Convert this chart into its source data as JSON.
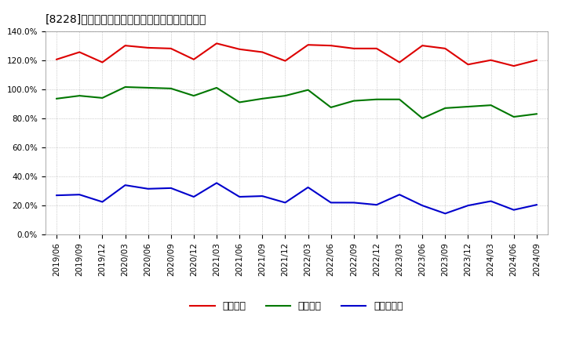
{
  "title": "[8228]　流動比率、当座比率、現預金比率の推移",
  "x_labels": [
    "2019/06",
    "2019/09",
    "2019/12",
    "2020/03",
    "2020/06",
    "2020/09",
    "2020/12",
    "2021/03",
    "2021/06",
    "2021/09",
    "2021/12",
    "2022/03",
    "2022/06",
    "2022/09",
    "2022/12",
    "2023/03",
    "2023/06",
    "2023/09",
    "2023/12",
    "2024/03",
    "2024/06",
    "2024/09"
  ],
  "ryudo": [
    120.5,
    125.5,
    118.5,
    130.0,
    128.5,
    128.0,
    120.5,
    131.5,
    127.5,
    125.5,
    119.5,
    130.5,
    130.0,
    128.0,
    128.0,
    118.5,
    130.0,
    128.0,
    117.0,
    120.0,
    116.0,
    120.0
  ],
  "toza": [
    93.5,
    95.5,
    94.0,
    101.5,
    101.0,
    100.5,
    95.5,
    101.0,
    91.0,
    93.5,
    95.5,
    99.5,
    87.5,
    92.0,
    93.0,
    93.0,
    80.0,
    87.0,
    88.0,
    89.0,
    81.0,
    83.0
  ],
  "genkin": [
    27.0,
    27.5,
    22.5,
    34.0,
    31.5,
    32.0,
    26.0,
    35.5,
    26.0,
    26.5,
    22.0,
    32.5,
    22.0,
    22.0,
    20.5,
    27.5,
    20.0,
    14.5,
    20.0,
    23.0,
    17.0,
    20.5
  ],
  "ryudo_color": "#dd0000",
  "toza_color": "#007700",
  "genkin_color": "#0000cc",
  "bg_color": "#ffffff",
  "plot_bg_color": "#ffffff",
  "grid_color": "#aaaaaa",
  "ylim": [
    0,
    140
  ],
  "yticks": [
    0,
    20,
    40,
    60,
    80,
    100,
    120,
    140
  ],
  "legend_labels": [
    "流動比率",
    "当座比率",
    "現預金比率"
  ],
  "title_fontsize": 11,
  "tick_fontsize": 7.5,
  "legend_fontsize": 9
}
